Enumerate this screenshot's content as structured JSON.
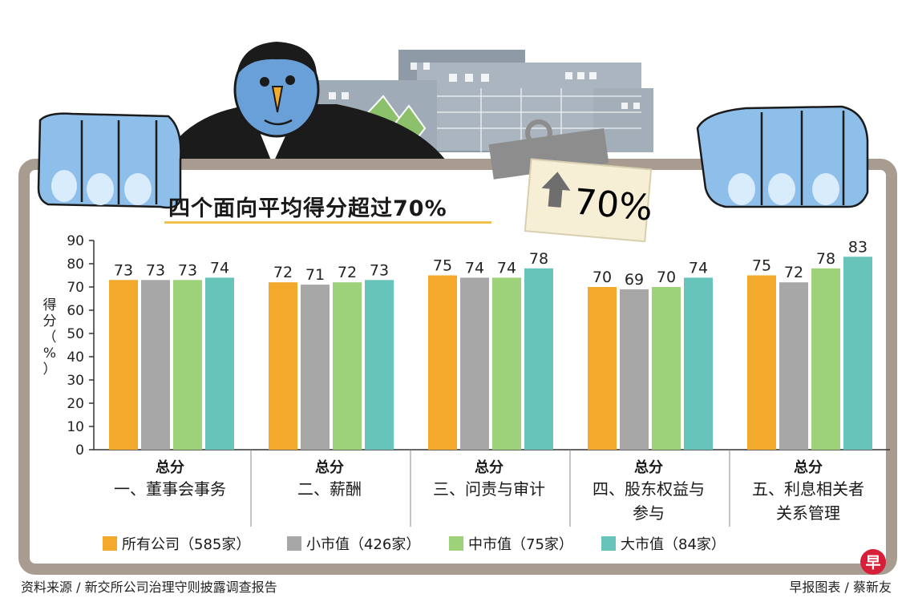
{
  "title": "四个面向平均得分超过70%",
  "badge_text": "70%",
  "source": "资料来源 / 新交所公司治理守则披露调查报告",
  "credit": "早报图表 / 蔡新友",
  "logo_text": "早",
  "colors": {
    "all": "#f2a92c",
    "small": "#a7a7a7",
    "mid": "#9ed27a",
    "large": "#66c4ba",
    "frame": "#a89c90"
  },
  "chart_data": {
    "type": "bar",
    "ylabel": "得分（%）",
    "ylim": [
      0,
      90
    ],
    "yticks": [
      0,
      10,
      20,
      30,
      40,
      50,
      60,
      70,
      80,
      90
    ],
    "groups": [
      {
        "top": "总分",
        "lines": [
          "一、董事会事务"
        ]
      },
      {
        "top": "总分",
        "lines": [
          "二、薪酬"
        ]
      },
      {
        "top": "总分",
        "lines": [
          "三、问责与审计"
        ]
      },
      {
        "top": "总分",
        "lines": [
          "四、股东权益与",
          "参与"
        ]
      },
      {
        "top": "总分",
        "lines": [
          "五、利息相关者",
          "关系管理"
        ]
      }
    ],
    "series": [
      {
        "name": "所有公司（585家）",
        "key": "all",
        "values": [
          73,
          72,
          75,
          70,
          75
        ]
      },
      {
        "name": "小市值（426家）",
        "key": "small",
        "values": [
          73,
          71,
          74,
          69,
          72
        ]
      },
      {
        "name": "中市值（75家）",
        "key": "mid",
        "values": [
          73,
          72,
          74,
          70,
          78
        ]
      },
      {
        "name": "大市值（84家）",
        "key": "large",
        "values": [
          74,
          73,
          78,
          74,
          83
        ]
      }
    ],
    "grid": false,
    "legend_position": "bottom"
  }
}
